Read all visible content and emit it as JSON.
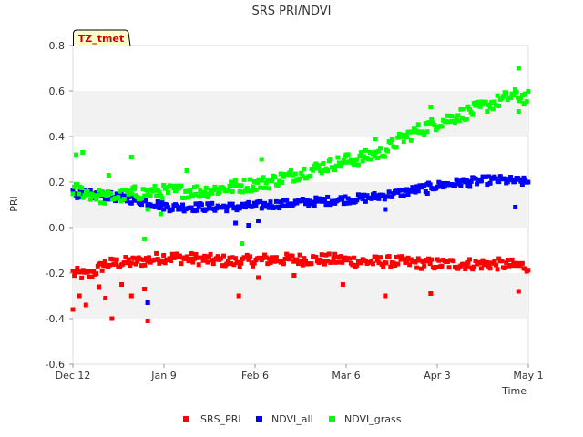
{
  "chart_data": {
    "type": "scatter",
    "title": "SRS PRI/NDVI",
    "xlabel": "Time",
    "ylabel": "PRI",
    "site_label": "TZ_tmet",
    "x_ticks": [
      "Dec 12",
      "Jan 9",
      "Feb 6",
      "Mar 6",
      "Apr 3",
      "May 1"
    ],
    "x_range_days": [
      0,
      140
    ],
    "ylim": [
      -0.6,
      0.8
    ],
    "y_ticks": [
      "-0.6",
      "-0.4",
      "-0.2",
      "0.0",
      "0.2",
      "0.4",
      "0.6",
      "0.8"
    ],
    "y_tick_values": [
      -0.6,
      -0.4,
      -0.2,
      0.0,
      0.2,
      0.4,
      0.6,
      0.8
    ],
    "grid": "alternating horizontal bands",
    "legend_position": "bottom-center",
    "series": [
      {
        "name": "SRS_PRI",
        "color": "#ff0000",
        "trend_days": [
          0,
          5,
          10,
          20,
          28,
          40,
          50,
          60,
          70,
          80,
          90,
          100,
          110,
          120,
          130,
          140
        ],
        "trend_values": [
          -0.2,
          -0.21,
          -0.16,
          -0.15,
          -0.13,
          -0.14,
          -0.15,
          -0.14,
          -0.14,
          -0.14,
          -0.15,
          -0.15,
          -0.16,
          -0.16,
          -0.16,
          -0.17
        ],
        "outliers": [
          [
            0,
            -0.36
          ],
          [
            2,
            -0.3
          ],
          [
            4,
            -0.34
          ],
          [
            8,
            -0.26
          ],
          [
            10,
            -0.31
          ],
          [
            12,
            -0.4
          ],
          [
            15,
            -0.25
          ],
          [
            18,
            -0.3
          ],
          [
            22,
            -0.27
          ],
          [
            23,
            -0.41
          ],
          [
            23,
            -0.33
          ],
          [
            51,
            -0.3
          ],
          [
            57,
            -0.22
          ],
          [
            68,
            -0.21
          ],
          [
            83,
            -0.25
          ],
          [
            96,
            -0.3
          ],
          [
            110,
            -0.29
          ],
          [
            137,
            -0.28
          ]
        ]
      },
      {
        "name": "NDVI_all",
        "color": "#0000ff",
        "trend_days": [
          0,
          10,
          20,
          30,
          40,
          50,
          60,
          70,
          80,
          90,
          100,
          110,
          120,
          130,
          140
        ],
        "trend_values": [
          0.15,
          0.14,
          0.12,
          0.09,
          0.09,
          0.09,
          0.1,
          0.11,
          0.12,
          0.13,
          0.15,
          0.18,
          0.2,
          0.21,
          0.2
        ],
        "outliers": [
          [
            23,
            -0.33
          ],
          [
            50,
            0.02
          ],
          [
            54,
            0.01
          ],
          [
            57,
            0.03
          ],
          [
            77,
            0.12
          ],
          [
            96,
            0.08
          ],
          [
            109,
            0.15
          ],
          [
            122,
            0.18
          ],
          [
            136,
            0.09
          ]
        ]
      },
      {
        "name": "NDVI_grass",
        "color": "#00ff00",
        "trend_days": [
          0,
          10,
          20,
          30,
          40,
          50,
          60,
          70,
          80,
          90,
          95,
          100,
          105,
          110,
          120,
          130,
          135,
          140
        ],
        "trend_values": [
          0.17,
          0.13,
          0.15,
          0.16,
          0.16,
          0.18,
          0.2,
          0.24,
          0.28,
          0.31,
          0.33,
          0.38,
          0.42,
          0.45,
          0.5,
          0.55,
          0.58,
          0.57
        ],
        "outliers": [
          [
            1,
            0.32
          ],
          [
            3,
            0.33
          ],
          [
            11,
            0.23
          ],
          [
            18,
            0.31
          ],
          [
            19,
            0.18
          ],
          [
            22,
            -0.05
          ],
          [
            23,
            0.08
          ],
          [
            27,
            0.06
          ],
          [
            35,
            0.25
          ],
          [
            52,
            -0.07
          ],
          [
            58,
            0.3
          ],
          [
            84,
            0.32
          ],
          [
            93,
            0.39
          ],
          [
            110,
            0.53
          ],
          [
            137,
            0.7
          ],
          [
            137,
            0.51
          ]
        ]
      }
    ]
  }
}
